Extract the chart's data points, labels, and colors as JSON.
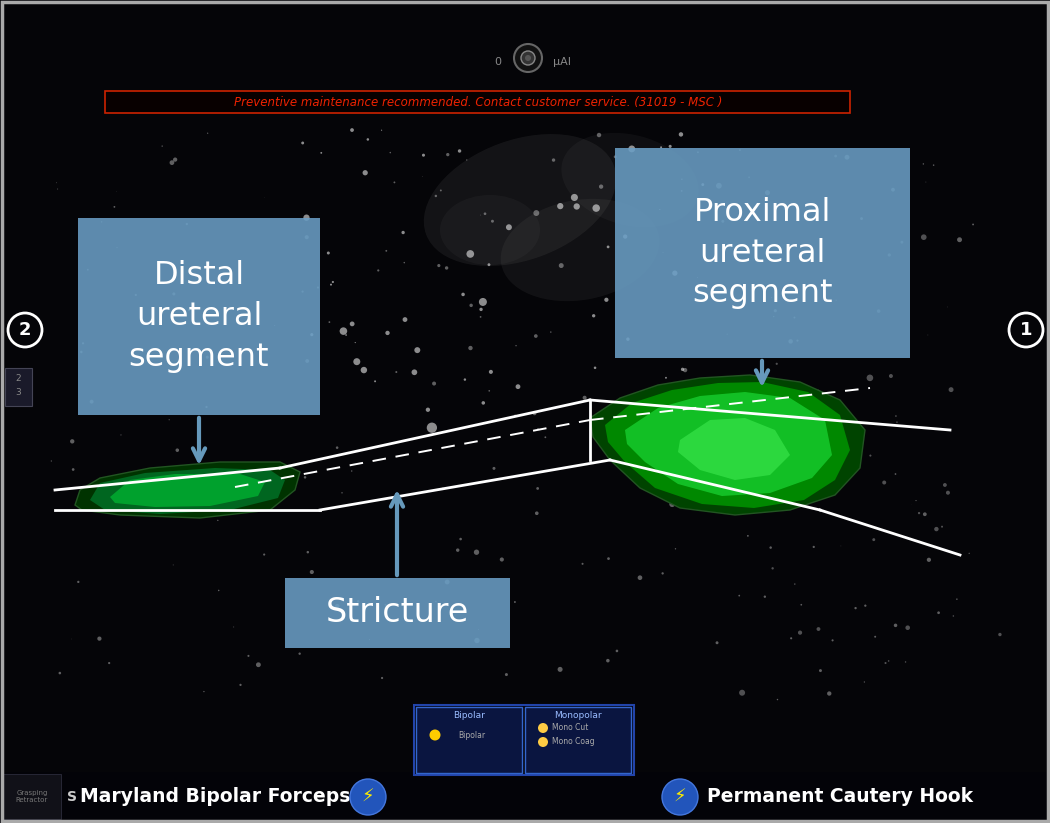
{
  "fig_width": 10.5,
  "fig_height": 8.23,
  "bg_color": "#050508",
  "title_bar_text": "Preventive maintenance recommended. Contact customer service. (31019 - MSC )",
  "title_bar_bg": "#000000",
  "title_bar_border_color": "#cc2200",
  "title_bar_text_color": "#ee2200",
  "label_distal": "Distal\nureteral\nsegment",
  "label_proximal": "Proximal\nureteral\nsegment",
  "label_stricture": "Stricture",
  "label_box_color": "#6a9ec5",
  "label_text_color": "#ffffff",
  "arrow_color": "#6699bb",
  "bottom_left_text": "Maryland Bipolar Forceps",
  "bottom_right_text": "Permanent Cautery Hook",
  "bottom_text_color": "#ffffff",
  "circle_num_1": "1",
  "circle_num_2": "2",
  "white_line_color": "#ffffff",
  "border_color": "#aaaaaa"
}
